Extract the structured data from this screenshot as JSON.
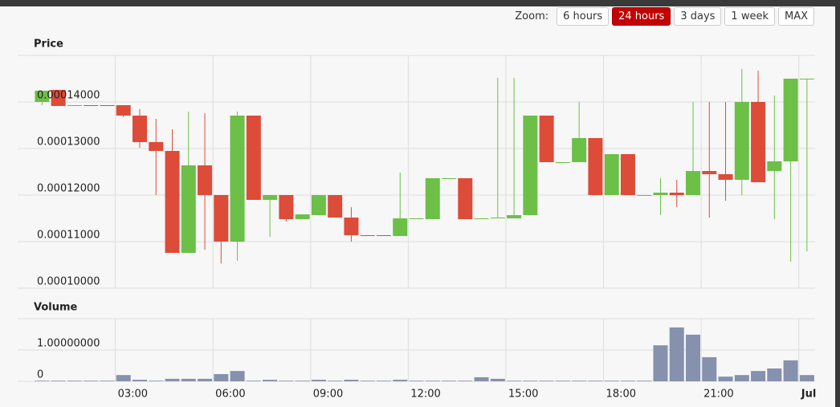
{
  "zoom": {
    "label": "Zoom:",
    "buttons": [
      "6 hours",
      "24 hours",
      "3 days",
      "1 week",
      "MAX"
    ],
    "selected": 1
  },
  "chart_data": [
    {
      "type": "candlestick",
      "title": "Price",
      "x": [
        0.75,
        1.25,
        1.75,
        2.25,
        2.75,
        3.25,
        3.75,
        4.25,
        4.75,
        5.25,
        5.75,
        6.25,
        6.75,
        7.25,
        7.75,
        8.25,
        8.75,
        9.25,
        9.75,
        10.25,
        10.75,
        11.25,
        11.75,
        12.25,
        12.75,
        13.25,
        13.75,
        14.25,
        14.75,
        15.25,
        15.75,
        16.25,
        16.75,
        17.25,
        17.75,
        18.25,
        18.75,
        19.25,
        19.75,
        20.25,
        20.75,
        21.25,
        21.75,
        22.25,
        22.75,
        23.25,
        23.75,
        24.25
      ],
      "open": [
        0.00014,
        0.00014259,
        0.00013931,
        0.00013931,
        0.00013931,
        0.00013931,
        0.00013707,
        0.00013138,
        0.00012948,
        0.00010759,
        0.00012638,
        0.00012,
        0.00011,
        0.00013707,
        0.00011897,
        0.00012,
        0.00011483,
        0.00011569,
        0.00012,
        0.00011517,
        0.00011138,
        0.00011138,
        0.00011121,
        0.000115,
        0.00011483,
        0.00012362,
        0.00012362,
        0.00011483,
        0.000115,
        0.000115,
        0.00011569,
        0.00013707,
        0.00012707,
        0.00012707,
        0.00013224,
        0.00012,
        0.00012879,
        0.00012,
        0.00012,
        0.00012052,
        0.00012,
        0.00012517,
        0.00012448,
        0.00012328,
        0.00014,
        0.00012517,
        0.00012724,
        0.000145
      ],
      "high": [
        0.00014241,
        0.00014259,
        0.00013931,
        0.00013931,
        0.00013931,
        0.00013931,
        0.00013845,
        0.00013638,
        0.00013414,
        0.00013793,
        0.00013759,
        0.00012,
        0.00013793,
        0.00013707,
        0.00012,
        0.00012,
        0.00011586,
        0.00012,
        0.00012,
        0.00011741,
        0.00011138,
        0.00011138,
        0.00012483,
        0.000115,
        0.00012362,
        0.00012362,
        0.00012362,
        0.000115,
        0.00014517,
        0.00014517,
        0.00013707,
        0.00013707,
        0.00012707,
        0.00014,
        0.00013224,
        0.00012879,
        0.00012879,
        0.00012,
        0.00012362,
        0.00012328,
        0.00014,
        0.00014,
        0.00014,
        0.00014707,
        0.00014672,
        0.00014138,
        0.000145,
        0.000145
      ],
      "low": [
        0.00013931,
        0.00013914,
        0.00013931,
        0.00013914,
        0.00013914,
        0.00013672,
        0.00013017,
        0.00012,
        0.00010759,
        0.00010759,
        0.00010828,
        0.00010534,
        0.00010586,
        0.00011897,
        0.00011103,
        0.00011431,
        0.00011483,
        0.00011569,
        0.00011517,
        0.00011,
        0.00011121,
        0.00011121,
        0.00011121,
        0.000115,
        0.00011483,
        0.00012362,
        0.00011483,
        0.00011483,
        0.000115,
        0.000115,
        0.00011569,
        0.00012707,
        0.00012707,
        0.00012707,
        0.00012,
        0.00012,
        0.00012,
        0.00012,
        0.00011569,
        0.00011741,
        0.00012,
        0.00011517,
        0.00011879,
        0.00012,
        0.00012276,
        0.00011483,
        0.00010569,
        0.00010793
      ],
      "close": [
        0.00014241,
        0.00013914,
        0.00013931,
        0.00013914,
        0.00013914,
        0.00013707,
        0.00013138,
        0.00012948,
        0.00010759,
        0.00012638,
        0.00012,
        0.00011,
        0.00013707,
        0.00011897,
        0.00012,
        0.00011483,
        0.00011586,
        0.00012,
        0.00011517,
        0.00011138,
        0.00011121,
        0.00011121,
        0.000115,
        0.000115,
        0.00012362,
        0.00012362,
        0.00011483,
        0.000115,
        0.00011517,
        0.00011569,
        0.00013707,
        0.00012707,
        0.00012707,
        0.00013224,
        0.00012,
        0.00012879,
        0.00012,
        0.00012,
        0.00012052,
        0.00012,
        0.00012517,
        0.00012448,
        0.00012328,
        0.00014,
        0.00012276,
        0.00012724,
        0.000145,
        0.000145
      ],
      "up_color": "#6cbf47",
      "down_color": "#dd4b39",
      "xlim": [
        0,
        24.5
      ],
      "xticks": [
        3,
        6,
        9,
        12,
        15,
        18,
        21,
        24
      ],
      "ylim": [
        0.0001,
        0.00015
      ],
      "yticks": [
        {
          "value": 0.0001,
          "label": "0.00010000"
        },
        {
          "value": 0.00011,
          "label": "0.00011000"
        },
        {
          "value": 0.00012,
          "label": "0.00012000"
        },
        {
          "value": 0.00013,
          "label": "0.00013000"
        },
        {
          "value": 0.00014,
          "label": "0.00014000"
        }
      ],
      "grid": true
    },
    {
      "type": "bar",
      "title": "Volume",
      "x": [
        0.75,
        1.25,
        1.75,
        2.25,
        2.75,
        3.25,
        3.75,
        4.25,
        4.75,
        5.25,
        5.75,
        6.25,
        6.75,
        7.25,
        7.75,
        8.25,
        8.75,
        9.25,
        9.75,
        10.25,
        10.75,
        11.25,
        11.75,
        12.25,
        12.75,
        13.25,
        13.75,
        14.25,
        14.75,
        15.25,
        15.75,
        16.25,
        16.75,
        17.25,
        17.75,
        18.25,
        18.75,
        19.25,
        19.75,
        20.25,
        20.75,
        21.25,
        21.75,
        22.25,
        22.75,
        23.25,
        23.75,
        24.25
      ],
      "values": [
        0.02,
        0.02,
        0.02,
        0.02,
        0.02,
        0.2,
        0.05,
        0.02,
        0.08,
        0.08,
        0.08,
        0.23,
        0.33,
        0.02,
        0.05,
        0.02,
        0.02,
        0.05,
        0.02,
        0.05,
        0.02,
        0.02,
        0.05,
        0.02,
        0.02,
        0.02,
        0.02,
        0.13,
        0.08,
        0.02,
        0.02,
        0.02,
        0.02,
        0.02,
        0.02,
        0.02,
        0.02,
        0.02,
        1.15,
        1.72,
        1.49,
        0.77,
        0.15,
        0.2,
        0.33,
        0.41,
        0.67,
        0.2
      ],
      "color": "#8591ad",
      "xlim": [
        0,
        24.5
      ],
      "xticks": [
        {
          "value": 3,
          "label": "03:00"
        },
        {
          "value": 6,
          "label": "06:00"
        },
        {
          "value": 9,
          "label": "09:00"
        },
        {
          "value": 12,
          "label": "12:00"
        },
        {
          "value": 15,
          "label": "15:00"
        },
        {
          "value": 18,
          "label": "18:00"
        },
        {
          "value": 21,
          "label": "21:00"
        },
        {
          "value": 24,
          "label": "Jul"
        }
      ],
      "ylim": [
        0,
        2
      ],
      "yticks": [
        0,
        {
          "value": 1,
          "label": "1.00000000"
        }
      ],
      "grid": true
    }
  ]
}
